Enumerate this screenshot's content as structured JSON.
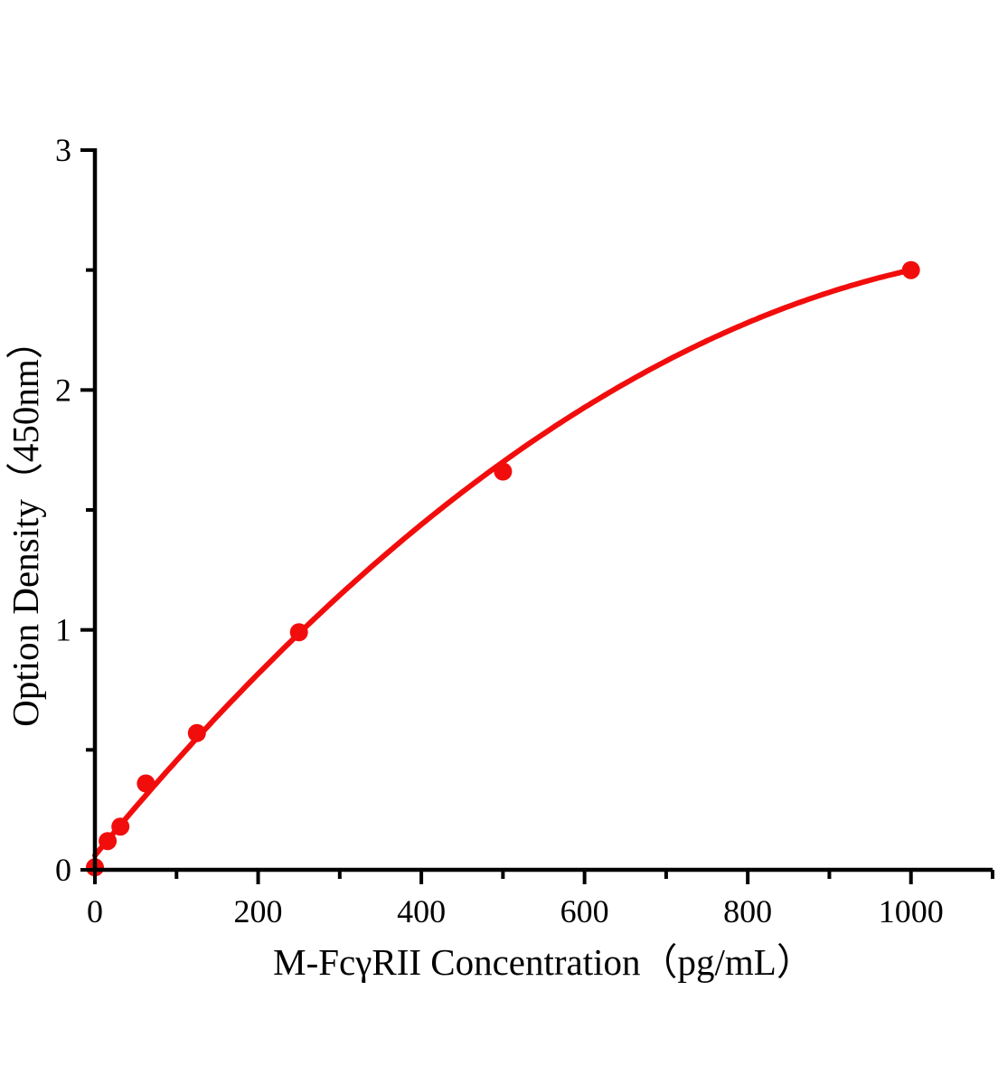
{
  "chart_data": {
    "type": "scatter",
    "title": "",
    "xlabel": "M-FcγRII Concentration（pg/mL）",
    "ylabel": "Option Density（450nm）",
    "x": [
      0,
      15.6,
      31.25,
      62.5,
      125,
      250,
      500,
      1000
    ],
    "y": [
      0.01,
      0.12,
      0.18,
      0.36,
      0.57,
      0.99,
      1.66,
      2.5
    ],
    "xlim": [
      0,
      1100
    ],
    "ylim": [
      0,
      3
    ],
    "x_major_ticks": [
      0,
      200,
      400,
      600,
      800,
      1000
    ],
    "x_minor_ticks": [
      100,
      300,
      500,
      700,
      900,
      1100
    ],
    "y_major_ticks": [
      0,
      1,
      2,
      3
    ],
    "y_minor_ticks": [
      0.5,
      1.5,
      2.5
    ],
    "trend_fit": {
      "type": "quadratic",
      "a": 0.06,
      "b": 0.00412,
      "c": -1.68e-06,
      "x_start": 0,
      "x_end": 1000
    },
    "grid": false,
    "legend": false,
    "colors": {
      "marker": "#f20d0d",
      "line": "#f20d0d",
      "axis": "#000000",
      "text": "#000000",
      "background": "#ffffff"
    }
  }
}
